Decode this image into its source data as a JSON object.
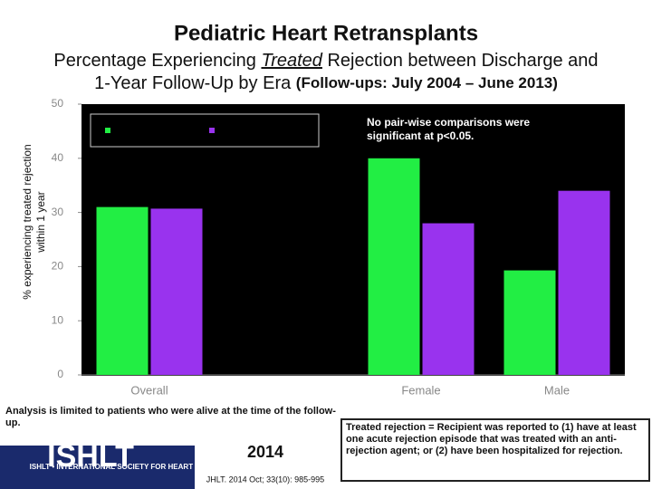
{
  "chart_data": {
    "type": "bar",
    "title": "Pediatric Heart Retransplants",
    "subtitle": [
      "Percentage Experiencing ",
      "Treated",
      " Rejection between Discharge and",
      "1-Year Follow-Up by Era ",
      "(Follow-ups: July 2004 – June 2013)"
    ],
    "ylabel": [
      "% experiencing treated rejection",
      "within 1 year"
    ],
    "annotation": "No pair-wise comparisons were significant at p<0.05.",
    "categories": [
      "Overall",
      null,
      "Female",
      "Male"
    ],
    "series": [
      {
        "color": "#22ee44",
        "values": [
          31,
          null,
          40,
          19.3
        ]
      },
      {
        "color": "#9933ee",
        "values": [
          30.7,
          null,
          28,
          34
        ]
      }
    ],
    "ylim": [
      0,
      50
    ],
    "yticks": [
      0,
      10,
      20,
      30,
      40,
      50
    ],
    "grid": false
  },
  "footer": {
    "left_note": "Analysis is limited to patients who were alive at the time of the follow-up.",
    "right_note": "Treated rejection = Recipient was reported to (1) have at least one acute rejection episode that was treated with an anti-rejection agent; or (2) have been hospitalized for rejection.",
    "logo": "ISHLT",
    "logo_caption": "ISHLT • INTERNATIONAL SOCIETY FOR HEART AND LUNG TRANSPLANTATION",
    "year": "2014",
    "citation": "JHLT. 2014 Oct; 33(10): 985-995"
  }
}
